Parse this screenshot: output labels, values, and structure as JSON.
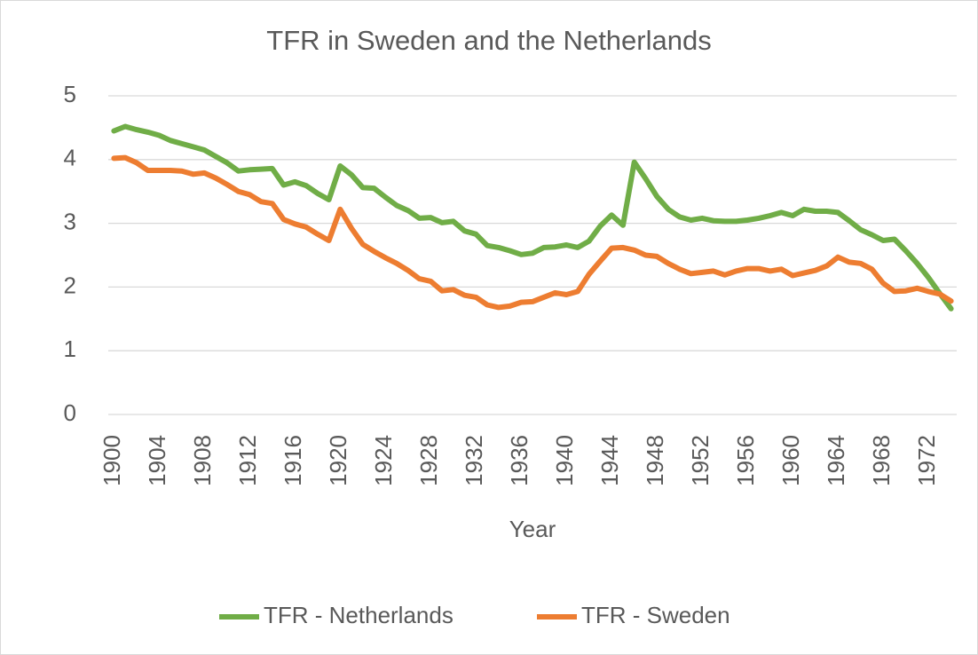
{
  "chart_data": {
    "type": "line",
    "title": "TFR in Sweden and the Netherlands",
    "x_label": "Year",
    "categories": [
      "1900",
      null,
      null,
      null,
      "1904",
      null,
      null,
      null,
      "1908",
      null,
      null,
      null,
      "1912",
      null,
      null,
      null,
      "1916",
      null,
      null,
      null,
      "1920",
      null,
      null,
      null,
      "1924",
      null,
      null,
      null,
      "1928",
      null,
      null,
      null,
      "1932",
      null,
      null,
      null,
      "1936",
      null,
      null,
      null,
      "1940",
      null,
      null,
      null,
      "1944",
      null,
      null,
      null,
      "1948",
      null,
      null,
      null,
      "1952",
      null,
      null,
      null,
      "1956",
      null,
      null,
      null,
      "1960",
      null,
      null,
      null,
      "1964",
      null,
      null,
      null,
      "1968",
      null,
      null,
      null,
      "1972",
      null,
      null
    ],
    "series": [
      {
        "name": "TFR - Netherlands",
        "color": "#70ad47",
        "values": [
          4.45,
          4.52,
          4.47,
          4.43,
          4.38,
          4.3,
          4.25,
          4.2,
          4.15,
          4.05,
          3.95,
          3.82,
          3.84,
          3.85,
          3.86,
          3.6,
          3.65,
          3.59,
          3.47,
          3.37,
          3.9,
          3.76,
          3.56,
          3.55,
          3.41,
          3.28,
          3.2,
          3.08,
          3.09,
          3.01,
          3.03,
          2.88,
          2.83,
          2.65,
          2.62,
          2.57,
          2.51,
          2.53,
          2.62,
          2.63,
          2.66,
          2.62,
          2.72,
          2.96,
          3.13,
          2.97,
          3.96,
          3.7,
          3.42,
          3.22,
          3.1,
          3.05,
          3.08,
          3.04,
          3.03,
          3.03,
          3.05,
          3.08,
          3.12,
          3.17,
          3.12,
          3.22,
          3.19,
          3.19,
          3.17,
          3.04,
          2.9,
          2.82,
          2.73,
          2.75,
          2.57,
          2.37,
          2.15,
          1.9,
          1.66
        ]
      },
      {
        "name": "TFR - Sweden",
        "color": "#ed7d31",
        "values": [
          4.02,
          4.03,
          3.95,
          3.83,
          3.83,
          3.83,
          3.82,
          3.77,
          3.79,
          3.71,
          3.61,
          3.5,
          3.45,
          3.34,
          3.31,
          3.06,
          2.99,
          2.94,
          2.83,
          2.73,
          3.22,
          2.92,
          2.67,
          2.56,
          2.46,
          2.37,
          2.26,
          2.13,
          2.09,
          1.94,
          1.96,
          1.87,
          1.84,
          1.72,
          1.68,
          1.7,
          1.76,
          1.77,
          1.84,
          1.91,
          1.88,
          1.93,
          2.2,
          2.41,
          2.61,
          2.62,
          2.58,
          2.5,
          2.48,
          2.37,
          2.28,
          2.21,
          2.23,
          2.25,
          2.19,
          2.25,
          2.29,
          2.29,
          2.25,
          2.28,
          2.18,
          2.22,
          2.26,
          2.33,
          2.47,
          2.39,
          2.37,
          2.28,
          2.06,
          1.93,
          1.94,
          1.98,
          1.93,
          1.89,
          1.78
        ]
      }
    ],
    "ylim": [
      0,
      5
    ],
    "yticks": [
      0,
      1,
      2,
      3,
      4,
      5
    ],
    "grid": true,
    "legend": "bottom"
  }
}
